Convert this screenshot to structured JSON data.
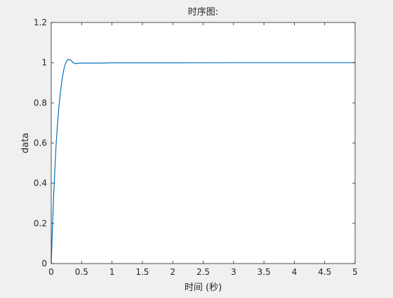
{
  "chart_data": {
    "type": "line",
    "title": "时序图:",
    "xlabel": "时间 (秒)",
    "ylabel": "data",
    "xlim": [
      0,
      5
    ],
    "ylim": [
      0,
      1.2
    ],
    "xticks": [
      0,
      0.5,
      1,
      1.5,
      2,
      2.5,
      3,
      3.5,
      4,
      4.5,
      5
    ],
    "xtick_labels": [
      "0",
      "0.5",
      "1",
      "1.5",
      "2",
      "2.5",
      "3",
      "3.5",
      "4",
      "4.5",
      "5"
    ],
    "yticks": [
      0,
      0.2,
      0.4,
      0.6,
      0.8,
      1,
      1.2
    ],
    "ytick_labels": [
      "0",
      "0.2",
      "0.4",
      "0.6",
      "0.8",
      "1",
      "1.2"
    ],
    "grid": false,
    "series": [
      {
        "color": "#0072bd",
        "x": [
          0,
          0.01,
          0.02,
          0.04,
          0.06,
          0.08,
          0.1,
          0.12,
          0.15,
          0.18,
          0.21,
          0.24,
          0.27,
          0.3,
          0.33,
          0.36,
          0.4,
          0.45,
          0.5,
          0.6,
          0.8,
          1,
          1.5,
          2,
          3,
          4,
          5
        ],
        "y": [
          0,
          0.09,
          0.18,
          0.34,
          0.47,
          0.59,
          0.68,
          0.76,
          0.85,
          0.92,
          0.97,
          1.0,
          1.015,
          1.016,
          1.01,
          1.0,
          0.995,
          0.997,
          0.998,
          0.998,
          0.998,
          0.999,
          0.999,
          0.999,
          1.0,
          1.0,
          1.0
        ]
      }
    ]
  }
}
